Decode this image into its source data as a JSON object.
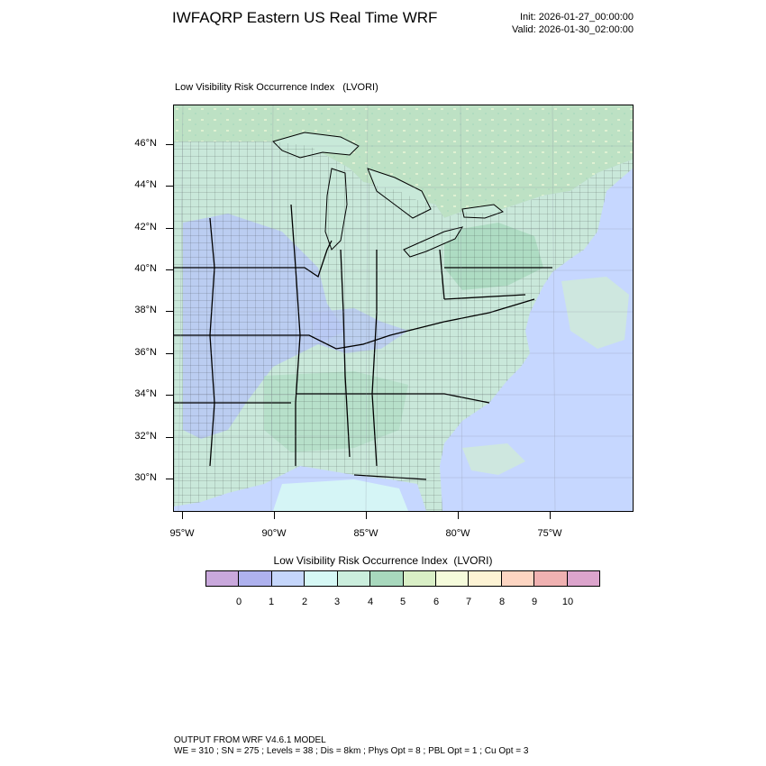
{
  "header": {
    "title": "IWFAQRP Eastern US Real Time WRF",
    "init": "Init: 2026-01-27_00:00:00",
    "valid": "Valid: 2026-01-30_02:00:00"
  },
  "map": {
    "field_title": "Low Visibility Risk Occurrence Index   (LVORI)",
    "lat_labels": [
      "46°N",
      "44°N",
      "42°N",
      "40°N",
      "38°N",
      "36°N",
      "34°N",
      "32°N",
      "30°N"
    ],
    "lon_labels": [
      "95°W",
      "90°W",
      "85°W",
      "80°W",
      "75°W"
    ],
    "colors": {
      "ocean": "#c6d7ff",
      "land_low": "#c9e8da",
      "great_lakes": "#c8e9d9",
      "canada": "#bde1c4",
      "boundaries": "#000000"
    }
  },
  "legend": {
    "title": "Low Visibility Risk Occurrence Index  (LVORI)",
    "labels": [
      "0",
      "1",
      "2",
      "3",
      "4",
      "5",
      "6",
      "7",
      "8",
      "9",
      "10"
    ],
    "colors": [
      "#c9a8dc",
      "#aeb1ee",
      "#c5d6fb",
      "#d6f8f5",
      "#cbeedd",
      "#a8d8bd",
      "#d9efc6",
      "#f5fbdb",
      "#fdf3d4",
      "#fdd5c2",
      "#f0b1b1",
      "#dca4cc"
    ]
  },
  "footer": {
    "line1": "OUTPUT FROM WRF V4.6.1 MODEL",
    "line2": "WE = 310 ; SN = 275 ; Levels = 38 ; Dis = 8km ; Phys Opt = 8 ; PBL Opt = 1 ; Cu Opt = 3"
  }
}
